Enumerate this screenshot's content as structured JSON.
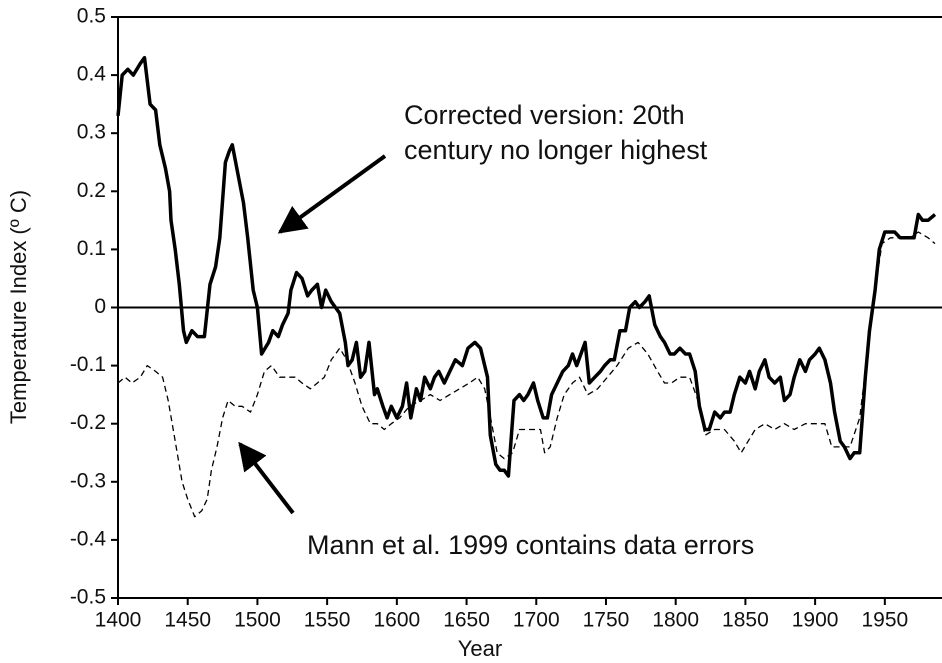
{
  "chart_data": {
    "type": "line",
    "xlabel": "Year",
    "ylabel": "Temperature Index (º C)",
    "xlim": [
      1400,
      1990
    ],
    "ylim": [
      -0.5,
      0.5
    ],
    "xticks": [
      1400,
      1450,
      1500,
      1550,
      1600,
      1650,
      1700,
      1750,
      1800,
      1850,
      1900,
      1950
    ],
    "yticks": [
      0.5,
      0.4,
      0.3,
      0.2,
      0.1,
      0,
      -0.1,
      -0.2,
      -0.3,
      -0.4,
      -0.5
    ],
    "zero_line": true,
    "annotations": [
      {
        "lines": [
          "Corrected version:  20th",
          "century no longer highest"
        ]
      },
      {
        "lines": [
          "Mann et al. 1999 contains data errors"
        ]
      }
    ],
    "series": [
      {
        "color": "#000000",
        "linestyle": "solid",
        "x": [
          1400,
          1403,
          1407,
          1411,
          1416,
          1419,
          1423,
          1427,
          1430,
          1434,
          1437,
          1438,
          1441,
          1444,
          1447,
          1449,
          1453,
          1457,
          1462,
          1466,
          1470,
          1473,
          1477,
          1480,
          1482,
          1486,
          1490,
          1493,
          1497,
          1500,
          1503,
          1508,
          1511,
          1515,
          1518,
          1522,
          1524,
          1528,
          1532,
          1536,
          1539,
          1543,
          1546,
          1549,
          1553,
          1556,
          1559,
          1563,
          1565,
          1568,
          1571,
          1574,
          1577,
          1580,
          1584,
          1586,
          1590,
          1593,
          1596,
          1600,
          1604,
          1607,
          1610,
          1614,
          1617,
          1620,
          1624,
          1627,
          1630,
          1634,
          1638,
          1642,
          1647,
          1651,
          1656,
          1660,
          1665,
          1667,
          1671,
          1674,
          1677,
          1680,
          1684,
          1688,
          1691,
          1694,
          1698,
          1701,
          1705,
          1708,
          1711,
          1715,
          1719,
          1723,
          1726,
          1729,
          1732,
          1735,
          1738,
          1742,
          1746,
          1749,
          1753,
          1756,
          1760,
          1764,
          1767,
          1771,
          1774,
          1778,
          1781,
          1785,
          1789,
          1792,
          1796,
          1799,
          1803,
          1807,
          1810,
          1814,
          1817,
          1821,
          1824,
          1828,
          1832,
          1835,
          1839,
          1842,
          1846,
          1850,
          1853,
          1857,
          1860,
          1864,
          1867,
          1871,
          1875,
          1878,
          1882,
          1885,
          1889,
          1893,
          1896,
          1900,
          1903,
          1907,
          1911,
          1914,
          1918,
          1921,
          1925,
          1928,
          1932,
          1936,
          1939,
          1943,
          1946,
          1950,
          1954,
          1957,
          1961,
          1964,
          1968,
          1971,
          1974,
          1977,
          1981,
          1986
        ],
        "values": [
          0.33,
          0.4,
          0.41,
          0.4,
          0.42,
          0.43,
          0.35,
          0.34,
          0.28,
          0.24,
          0.2,
          0.15,
          0.1,
          0.04,
          -0.04,
          -0.06,
          -0.04,
          -0.05,
          -0.05,
          0.04,
          0.07,
          0.12,
          0.25,
          0.27,
          0.28,
          0.23,
          0.18,
          0.12,
          0.03,
          0.0,
          -0.08,
          -0.06,
          -0.04,
          -0.05,
          -0.03,
          -0.01,
          0.03,
          0.06,
          0.05,
          0.02,
          0.03,
          0.04,
          0.0,
          0.03,
          0.01,
          0.0,
          -0.01,
          -0.06,
          -0.1,
          -0.09,
          -0.06,
          -0.12,
          -0.11,
          -0.06,
          -0.15,
          -0.14,
          -0.17,
          -0.19,
          -0.17,
          -0.19,
          -0.17,
          -0.13,
          -0.19,
          -0.14,
          -0.16,
          -0.12,
          -0.14,
          -0.12,
          -0.11,
          -0.13,
          -0.11,
          -0.09,
          -0.1,
          -0.07,
          -0.06,
          -0.07,
          -0.12,
          -0.22,
          -0.27,
          -0.28,
          -0.28,
          -0.29,
          -0.16,
          -0.15,
          -0.16,
          -0.15,
          -0.13,
          -0.16,
          -0.19,
          -0.19,
          -0.15,
          -0.13,
          -0.11,
          -0.1,
          -0.08,
          -0.1,
          -0.08,
          -0.06,
          -0.13,
          -0.12,
          -0.11,
          -0.1,
          -0.09,
          -0.09,
          -0.04,
          -0.04,
          0.0,
          0.01,
          0.0,
          0.01,
          0.02,
          -0.03,
          -0.05,
          -0.06,
          -0.08,
          -0.08,
          -0.07,
          -0.08,
          -0.08,
          -0.11,
          -0.17,
          -0.21,
          -0.21,
          -0.18,
          -0.19,
          -0.18,
          -0.18,
          -0.15,
          -0.12,
          -0.13,
          -0.11,
          -0.14,
          -0.11,
          -0.09,
          -0.12,
          -0.13,
          -0.12,
          -0.16,
          -0.15,
          -0.12,
          -0.09,
          -0.11,
          -0.09,
          -0.08,
          -0.07,
          -0.09,
          -0.13,
          -0.18,
          -0.23,
          -0.24,
          -0.26,
          -0.25,
          -0.25,
          -0.12,
          -0.04,
          0.03,
          0.1,
          0.13,
          0.13,
          0.13,
          0.12,
          0.12,
          0.12,
          0.12,
          0.16,
          0.15,
          0.15,
          0.16
        ]
      },
      {
        "color": "#000000",
        "linestyle": "dashed",
        "x": [
          1400,
          1405,
          1410,
          1416,
          1421,
          1427,
          1432,
          1436,
          1441,
          1446,
          1450,
          1455,
          1460,
          1464,
          1467,
          1471,
          1475,
          1479,
          1484,
          1489,
          1495,
          1500,
          1505,
          1510,
          1516,
          1521,
          1527,
          1532,
          1538,
          1543,
          1548,
          1553,
          1559,
          1564,
          1570,
          1575,
          1581,
          1586,
          1591,
          1596,
          1602,
          1609,
          1617,
          1624,
          1631,
          1638,
          1645,
          1652,
          1658,
          1663,
          1668,
          1672,
          1677,
          1683,
          1688,
          1695,
          1703,
          1706,
          1710,
          1715,
          1720,
          1726,
          1731,
          1737,
          1744,
          1751,
          1758,
          1766,
          1773,
          1780,
          1787,
          1792,
          1797,
          1803,
          1810,
          1816,
          1821,
          1828,
          1835,
          1842,
          1847,
          1852,
          1857,
          1864,
          1871,
          1878,
          1885,
          1893,
          1900,
          1907,
          1912,
          1918,
          1925,
          1932,
          1938,
          1943,
          1948,
          1954,
          1961,
          1968,
          1974,
          1981,
          1986
        ],
        "values": [
          -0.13,
          -0.12,
          -0.13,
          -0.12,
          -0.1,
          -0.11,
          -0.12,
          -0.16,
          -0.23,
          -0.3,
          -0.33,
          -0.36,
          -0.35,
          -0.33,
          -0.28,
          -0.24,
          -0.19,
          -0.16,
          -0.17,
          -0.17,
          -0.18,
          -0.15,
          -0.11,
          -0.1,
          -0.12,
          -0.12,
          -0.12,
          -0.13,
          -0.14,
          -0.13,
          -0.12,
          -0.09,
          -0.07,
          -0.09,
          -0.13,
          -0.17,
          -0.2,
          -0.2,
          -0.21,
          -0.2,
          -0.19,
          -0.17,
          -0.16,
          -0.15,
          -0.16,
          -0.15,
          -0.14,
          -0.13,
          -0.12,
          -0.14,
          -0.2,
          -0.25,
          -0.26,
          -0.25,
          -0.21,
          -0.21,
          -0.21,
          -0.25,
          -0.24,
          -0.19,
          -0.15,
          -0.13,
          -0.12,
          -0.15,
          -0.14,
          -0.12,
          -0.1,
          -0.07,
          -0.06,
          -0.08,
          -0.11,
          -0.13,
          -0.13,
          -0.12,
          -0.12,
          -0.16,
          -0.22,
          -0.21,
          -0.21,
          -0.23,
          -0.25,
          -0.23,
          -0.21,
          -0.2,
          -0.21,
          -0.2,
          -0.21,
          -0.2,
          -0.2,
          -0.2,
          -0.24,
          -0.24,
          -0.24,
          -0.19,
          -0.07,
          0.03,
          0.11,
          0.12,
          0.12,
          0.12,
          0.13,
          0.12,
          0.11
        ]
      }
    ]
  }
}
